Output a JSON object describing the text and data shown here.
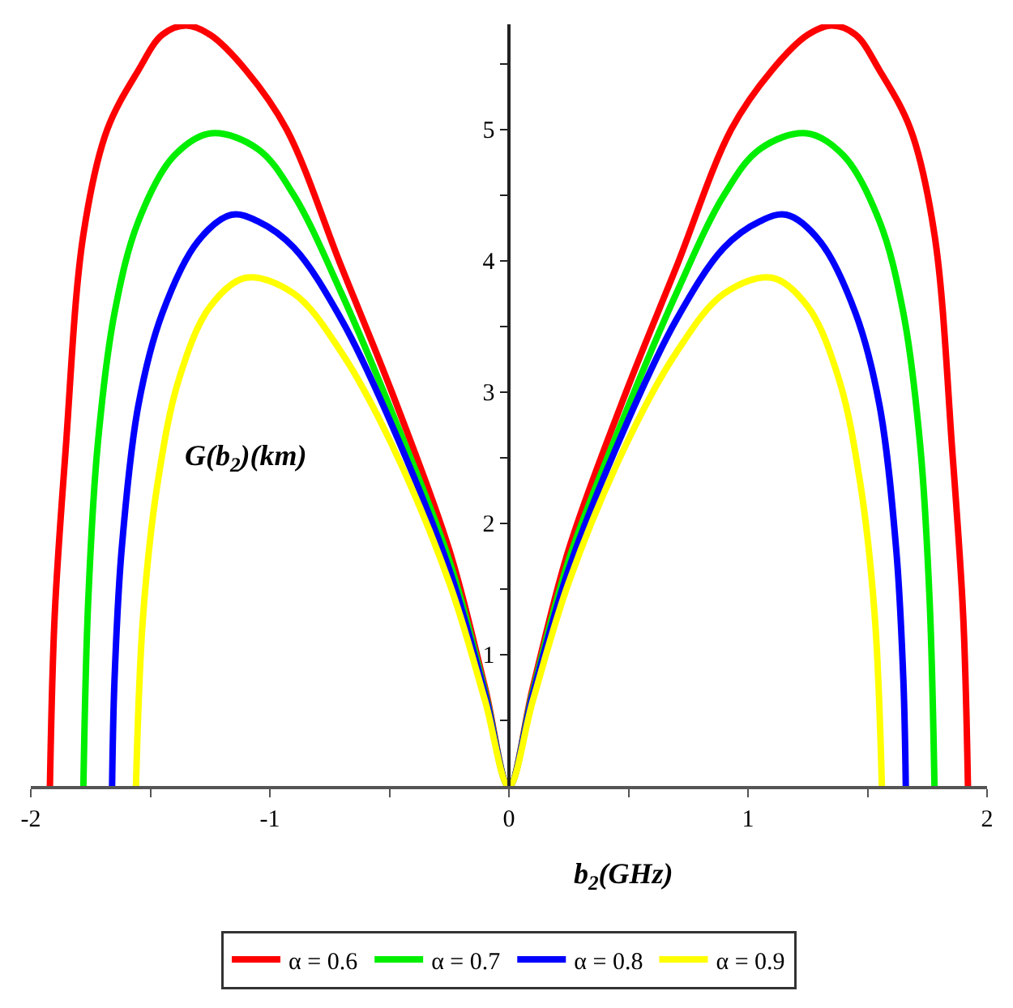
{
  "chart_data": {
    "type": "line",
    "xlabel": "b$_{2}$(GHz)",
    "ylabel": "G(b$_{2}$)(km)",
    "xlim": [
      -2,
      2
    ],
    "ylim": [
      0,
      5.8
    ],
    "xticks": [
      -2,
      {
        "value": -1.5,
        "label": null
      },
      -1,
      {
        "value": -0.5,
        "label": null
      },
      0,
      {
        "value": 0.5,
        "label": null
      },
      1,
      {
        "value": 1.5,
        "label": null
      },
      2
    ],
    "yticks": [
      {
        "value": 0.5,
        "label": null
      },
      1,
      {
        "value": 1.5,
        "label": null
      },
      2,
      {
        "value": 2.5,
        "label": null
      },
      3,
      {
        "value": 3.5,
        "label": null
      },
      4,
      {
        "value": 4.5,
        "label": null
      },
      5,
      {
        "value": 5.5,
        "label": null
      }
    ],
    "legend": "bottom",
    "marker": "none",
    "line_style": "solid",
    "series": [
      {
        "name": "α = 0.6",
        "color": "#ff0000",
        "x": [
          -1.92,
          -1.9,
          -1.855,
          -1.78,
          -1.68,
          -1.55,
          -1.45,
          -1.35,
          -1.25,
          -1.1,
          -0.93,
          -0.7,
          -0.49,
          -0.25,
          -0.1,
          0,
          0.1,
          0.25,
          0.49,
          0.7,
          0.93,
          1.1,
          1.25,
          1.35,
          1.45,
          1.55,
          1.68,
          1.78,
          1.855,
          1.9,
          1.92
        ],
        "values": [
          0,
          1.3,
          2.54,
          4.2,
          5.0,
          5.45,
          5.72,
          5.79,
          5.72,
          5.45,
          5.0,
          3.95,
          3.0,
          1.8,
          0.75,
          0,
          0.75,
          1.8,
          3.0,
          3.95,
          5.0,
          5.45,
          5.72,
          5.79,
          5.72,
          5.45,
          5.0,
          4.2,
          2.54,
          1.3,
          0
        ]
      },
      {
        "name": "α = 0.7",
        "color": "#00ee00",
        "x": [
          -1.78,
          -1.76,
          -1.72,
          -1.65,
          -1.55,
          -1.4,
          -1.245,
          -1.05,
          -0.9,
          -0.7,
          -0.49,
          -0.25,
          -0.1,
          0,
          0.1,
          0.25,
          0.49,
          0.7,
          0.9,
          1.05,
          1.245,
          1.4,
          1.55,
          1.65,
          1.72,
          1.76,
          1.78
        ],
        "values": [
          0,
          1.4,
          2.6,
          3.6,
          4.3,
          4.8,
          4.97,
          4.85,
          4.5,
          3.75,
          2.85,
          1.72,
          0.72,
          0,
          0.72,
          1.72,
          2.85,
          3.75,
          4.5,
          4.85,
          4.97,
          4.8,
          4.3,
          3.6,
          2.6,
          1.4,
          0
        ]
      },
      {
        "name": "α = 0.8",
        "color": "#0000ff",
        "x": [
          -1.66,
          -1.65,
          -1.62,
          -1.55,
          -1.45,
          -1.3,
          -1.16,
          -1.05,
          -0.9,
          -0.7,
          -0.49,
          -0.25,
          -0.1,
          0,
          0.1,
          0.25,
          0.49,
          0.7,
          0.9,
          1.05,
          1.16,
          1.3,
          1.45,
          1.55,
          1.62,
          1.65,
          1.66
        ],
        "values": [
          0,
          0.8,
          1.8,
          2.9,
          3.6,
          4.15,
          4.35,
          4.3,
          4.1,
          3.55,
          2.75,
          1.65,
          0.7,
          0,
          0.7,
          1.65,
          2.75,
          3.55,
          4.1,
          4.3,
          4.35,
          4.15,
          3.6,
          2.9,
          1.8,
          0.8,
          0
        ]
      },
      {
        "name": "α = 0.9",
        "color": "#ffff00",
        "x": [
          -1.56,
          -1.53,
          -1.47,
          -1.38,
          -1.25,
          -1.1,
          -0.9,
          -0.7,
          -0.49,
          -0.25,
          -0.1,
          0,
          0.1,
          0.25,
          0.49,
          0.7,
          0.9,
          1.1,
          1.25,
          1.38,
          1.47,
          1.53,
          1.56
        ],
        "values": [
          0,
          1.3,
          2.3,
          3.1,
          3.65,
          3.87,
          3.75,
          3.3,
          2.6,
          1.55,
          0.65,
          0,
          0.65,
          1.55,
          2.6,
          3.3,
          3.75,
          3.87,
          3.65,
          3.1,
          2.3,
          1.3,
          0
        ]
      }
    ]
  }
}
